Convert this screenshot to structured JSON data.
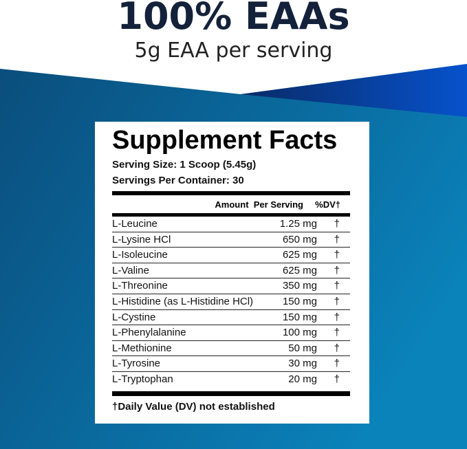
{
  "headline": {
    "title": "100% EAAs",
    "subtitle": "5g EAA per serving"
  },
  "colors": {
    "navy": "#14213a",
    "blue_dark": "#0a4f7e",
    "blue_light": "#0a80b8",
    "wedge": "#0650c8"
  },
  "facts": {
    "title": "Supplement Facts",
    "serving_size": "Serving Size: 1 Scoop (5.45g)",
    "servings_per_container": "Servings Per Container: 30",
    "header_amount": "Amount  Per Serving",
    "header_dv": "%DV†",
    "rows": [
      {
        "name": "L-Leucine",
        "amount": "1.25 mg",
        "dv": "†"
      },
      {
        "name": "L-Lysine HCl",
        "amount": "650 mg",
        "dv": "†"
      },
      {
        "name": "L-Isoleucine",
        "amount": "625 mg",
        "dv": "†"
      },
      {
        "name": "L-Valine",
        "amount": "625 mg",
        "dv": "†"
      },
      {
        "name": "L-Threonine",
        "amount": "350 mg",
        "dv": "†"
      },
      {
        "name": "L-Histidine (as L-Histidine HCl)",
        "amount": "150 mg",
        "dv": "†"
      },
      {
        "name": "L-Cystine",
        "amount": "150 mg",
        "dv": "†"
      },
      {
        "name": "L-Phenylalanine",
        "amount": "100 mg",
        "dv": "†"
      },
      {
        "name": "L-Methionine",
        "amount": "50 mg",
        "dv": "†"
      },
      {
        "name": "L-Tyrosine",
        "amount": "30 mg",
        "dv": "†"
      },
      {
        "name": "L-Tryptophan",
        "amount": "20 mg",
        "dv": "†"
      }
    ],
    "footnote": "†Daily Value (DV) not established"
  }
}
